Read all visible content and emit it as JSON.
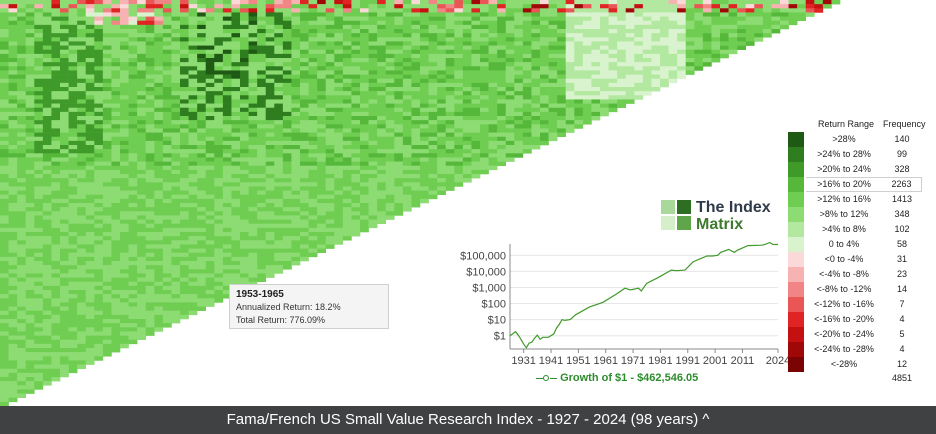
{
  "matrix": {
    "start_year": 1927,
    "end_year": 2024,
    "years": 98
  },
  "tooltip": {
    "period": "1953-1965",
    "annualized": "Annualized Return: 18.2%",
    "total": "Total Return: 776.09%"
  },
  "logo": {
    "line1": "The Index",
    "line2": "Matrix"
  },
  "legend": {
    "header_range": "Return Range",
    "header_freq": "Frequency",
    "rows": [
      {
        "range": ">28%",
        "freq": "140",
        "color": "#1f5a14"
      },
      {
        "range": ">24% to 28%",
        "freq": "99",
        "color": "#2e7d1f"
      },
      {
        "range": ">20% to 24%",
        "freq": "328",
        "color": "#3f9a2a"
      },
      {
        "range": ">16% to 20%",
        "freq": "2263",
        "color": "#55b83a"
      },
      {
        "range": ">12% to 16%",
        "freq": "1413",
        "color": "#6fce52"
      },
      {
        "range": ">8% to 12%",
        "freq": "348",
        "color": "#8ddc73"
      },
      {
        "range": ">4% to 8%",
        "freq": "102",
        "color": "#b2e8a0"
      },
      {
        "range": "0 to 4%",
        "freq": "58",
        "color": "#d8f3cd"
      },
      {
        "range": "<0 to -4%",
        "freq": "31",
        "color": "#fbd9d9"
      },
      {
        "range": "<-4% to -8%",
        "freq": "23",
        "color": "#f7b2b2"
      },
      {
        "range": "<-8% to -12%",
        "freq": "14",
        "color": "#f18585"
      },
      {
        "range": "<-12% to -16%",
        "freq": "7",
        "color": "#ea5656"
      },
      {
        "range": "<-16% to -20%",
        "freq": "4",
        "color": "#e02424"
      },
      {
        "range": "<-20% to -24%",
        "freq": "5",
        "color": "#c41010"
      },
      {
        "range": "<-24% to -28%",
        "freq": "4",
        "color": "#a00808"
      },
      {
        "range": "<-28%",
        "freq": "12",
        "color": "#7a0303"
      }
    ],
    "highlight_index": 3,
    "total": "4851"
  },
  "chart_data": {
    "type": "line",
    "series_label": "Growth of $1 - $462,546.05",
    "x_ticks": [
      "1931",
      "1941",
      "1951",
      "1961",
      "1971",
      "1981",
      "1991",
      "2001",
      "2011",
      "2024"
    ],
    "y_ticks": [
      "$1",
      "$10",
      "$100",
      "$1,000",
      "$10,000",
      "$100,000"
    ],
    "y_scale": "log",
    "x": [
      1926,
      1927,
      1928,
      1929,
      1930,
      1931,
      1932,
      1933,
      1934,
      1935,
      1936,
      1937,
      1938,
      1940,
      1942,
      1943,
      1944,
      1945,
      1946,
      1948,
      1950,
      1955,
      1960,
      1965,
      1968,
      1970,
      1973,
      1974,
      1976,
      1980,
      1985,
      1987,
      1990,
      1993,
      1998,
      2000,
      2002,
      2003,
      2006,
      2008,
      2009,
      2013,
      2018,
      2019,
      2021,
      2022,
      2024
    ],
    "y": [
      1,
      1.3,
      1.8,
      1.1,
      0.6,
      0.3,
      0.18,
      0.35,
      0.4,
      0.7,
      1.1,
      0.6,
      0.8,
      0.8,
      1.3,
      3,
      5,
      10,
      9,
      10,
      20,
      60,
      120,
      400,
      900,
      700,
      900,
      600,
      1800,
      4000,
      12000,
      11000,
      12000,
      40000,
      90000,
      90000,
      100000,
      150000,
      230000,
      150000,
      200000,
      400000,
      420000,
      450000,
      620000,
      480000,
      462546
    ]
  },
  "footer": {
    "title": "Fama/French US Small Value Research Index - 1927 - 2024 (98 years) ^"
  }
}
